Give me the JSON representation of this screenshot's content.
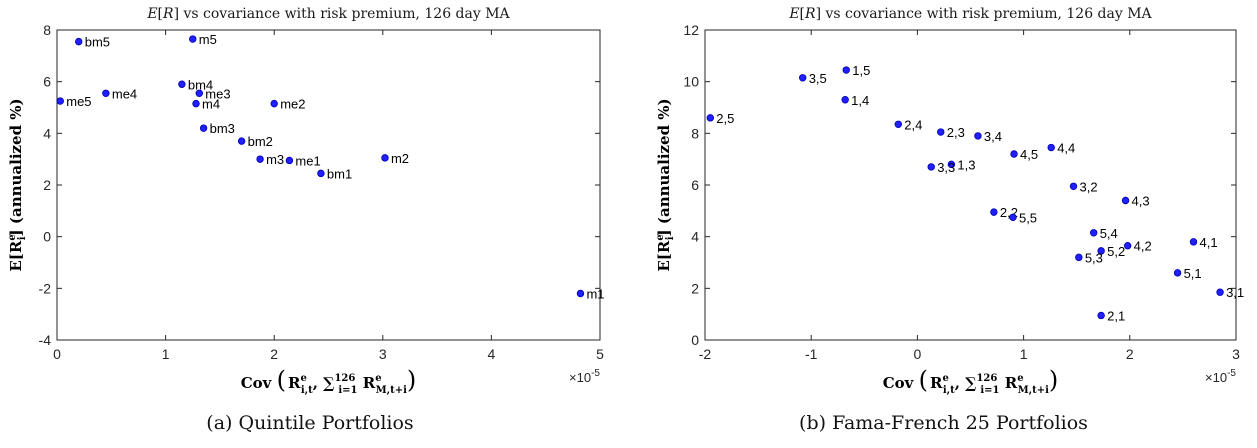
{
  "chart_data": [
    {
      "type": "scatter",
      "title": "E[R] vs covariance with risk premium, 126 day MA",
      "xlabel": "Cov(R^e_{i,t}, Σ_{i=1}^{126} R^e_{M,t+i})",
      "ylabel": "E[R^e_i] (annualized %)",
      "x_multiplier": "×10^-5",
      "xlim": [
        0,
        5
      ],
      "ylim": [
        -4,
        8
      ],
      "xticks": [
        0,
        1,
        2,
        3,
        4,
        5
      ],
      "yticks": [
        -4,
        -2,
        0,
        2,
        4,
        6,
        8
      ],
      "grid": false,
      "marker_color": "#1f1fff",
      "points": [
        {
          "label": "bm5",
          "x": 0.2,
          "y": 7.55
        },
        {
          "label": "m5",
          "x": 1.25,
          "y": 7.65
        },
        {
          "label": "bm4",
          "x": 1.15,
          "y": 5.9
        },
        {
          "label": "me3",
          "x": 1.31,
          "y": 5.55
        },
        {
          "label": "me4",
          "x": 0.45,
          "y": 5.55
        },
        {
          "label": "me5",
          "x": 0.03,
          "y": 5.25
        },
        {
          "label": "m4",
          "x": 1.28,
          "y": 5.15
        },
        {
          "label": "me2",
          "x": 2.0,
          "y": 5.15
        },
        {
          "label": "bm3",
          "x": 1.35,
          "y": 4.2
        },
        {
          "label": "bm2",
          "x": 1.7,
          "y": 3.7
        },
        {
          "label": "m3",
          "x": 1.87,
          "y": 3.0
        },
        {
          "label": "me1",
          "x": 2.14,
          "y": 2.95
        },
        {
          "label": "m2",
          "x": 3.02,
          "y": 3.05
        },
        {
          "label": "bm1",
          "x": 2.43,
          "y": 2.45
        },
        {
          "label": "m1",
          "x": 4.82,
          "y": -2.2
        }
      ]
    },
    {
      "type": "scatter",
      "title": "E[R] vs covariance with risk premium, 126 day MA",
      "xlabel": "Cov(R^e_{i,t}, Σ_{i=1}^{126} R^e_{M,t+i})",
      "ylabel": "E[R^e_i] (annualized %)",
      "x_multiplier": "×10^-5",
      "xlim": [
        -2,
        3
      ],
      "ylim": [
        0,
        12
      ],
      "xticks": [
        -2,
        -1,
        0,
        1,
        2,
        3
      ],
      "yticks": [
        0,
        2,
        4,
        6,
        8,
        10,
        12
      ],
      "grid": false,
      "marker_color": "#1f1fff",
      "points": [
        {
          "label": "1,5",
          "x": -0.67,
          "y": 10.45
        },
        {
          "label": "3,5",
          "x": -1.08,
          "y": 10.15
        },
        {
          "label": "1,4",
          "x": -0.68,
          "y": 9.3
        },
        {
          "label": "2,5",
          "x": -1.95,
          "y": 8.6
        },
        {
          "label": "2,4",
          "x": -0.18,
          "y": 8.35
        },
        {
          "label": "2,3",
          "x": 0.22,
          "y": 8.05
        },
        {
          "label": "3,4",
          "x": 0.57,
          "y": 7.9
        },
        {
          "label": "4,4",
          "x": 1.26,
          "y": 7.45
        },
        {
          "label": "4,5",
          "x": 0.91,
          "y": 7.2
        },
        {
          "label": "1,3",
          "x": 0.32,
          "y": 6.8
        },
        {
          "label": "3,3",
          "x": 0.13,
          "y": 6.7
        },
        {
          "label": "3,2",
          "x": 1.47,
          "y": 5.95
        },
        {
          "label": "4,3",
          "x": 1.96,
          "y": 5.4
        },
        {
          "label": "2,2",
          "x": 0.72,
          "y": 4.95
        },
        {
          "label": "5,5",
          "x": 0.9,
          "y": 4.75
        },
        {
          "label": "5,4",
          "x": 1.66,
          "y": 4.15
        },
        {
          "label": "4,1",
          "x": 2.6,
          "y": 3.8
        },
        {
          "label": "4,2",
          "x": 1.98,
          "y": 3.65
        },
        {
          "label": "5,2",
          "x": 1.73,
          "y": 3.45
        },
        {
          "label": "5,3",
          "x": 1.52,
          "y": 3.2
        },
        {
          "label": "5,1",
          "x": 2.45,
          "y": 2.6
        },
        {
          "label": "3,1",
          "x": 2.85,
          "y": 1.85
        },
        {
          "label": "2,1",
          "x": 1.73,
          "y": 0.95
        }
      ]
    }
  ],
  "captions": {
    "a": "(a) Quintile Portfolios",
    "b": "(b) Fama-French 25 Portfolios"
  }
}
